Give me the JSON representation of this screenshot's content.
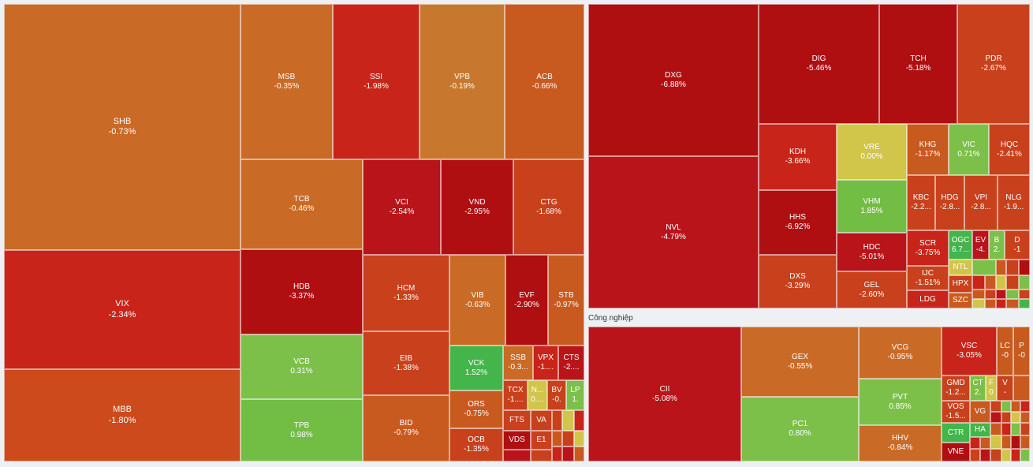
{
  "colors": {
    "strong_red": "#b00f12",
    "red": "#c8241a",
    "orange_red": "#cc4a1c",
    "orange": "#c96a26",
    "light_orange": "#c8782e",
    "yellow": "#d1c54a",
    "light_green": "#7cc04a",
    "green": "#43b54a"
  },
  "sectors": {
    "industrial_label": "Công nghiệp"
  },
  "tiles": {
    "SHB": {
      "sym": "SHB",
      "pct": "-0.73%"
    },
    "VIX": {
      "sym": "VIX",
      "pct": "-2.34%"
    },
    "MBB": {
      "sym": "MBB",
      "pct": "-1.80%"
    },
    "MSB": {
      "sym": "MSB",
      "pct": "-0.35%"
    },
    "SSI": {
      "sym": "SSI",
      "pct": "-1.98%"
    },
    "VPB": {
      "sym": "VPB",
      "pct": "-0.19%"
    },
    "ACB": {
      "sym": "ACB",
      "pct": "-0.66%"
    },
    "TCB": {
      "sym": "TCB",
      "pct": "-0.46%"
    },
    "VCI": {
      "sym": "VCI",
      "pct": "-2.54%"
    },
    "VND": {
      "sym": "VND",
      "pct": "-2.95%"
    },
    "CTG": {
      "sym": "CTG",
      "pct": "-1.68%"
    },
    "HDB": {
      "sym": "HDB",
      "pct": "-3.37%"
    },
    "VCB": {
      "sym": "VCB",
      "pct": "0.31%"
    },
    "TPB": {
      "sym": "TPB",
      "pct": "0.98%"
    },
    "HCM": {
      "sym": "HCM",
      "pct": "-1.33%"
    },
    "VIB": {
      "sym": "VIB",
      "pct": "-0.63%"
    },
    "EVF": {
      "sym": "EVF",
      "pct": "-2.90%"
    },
    "STB": {
      "sym": "STB",
      "pct": "-0.97%"
    },
    "EIB": {
      "sym": "EIB",
      "pct": "-1.38%"
    },
    "BID": {
      "sym": "BID",
      "pct": "-0.79%"
    },
    "VCK": {
      "sym": "VCK",
      "pct": "1.52%"
    },
    "SSB": {
      "sym": "SSB",
      "pct": "-0.3..."
    },
    "VPX": {
      "sym": "VPX",
      "pct": "-1...."
    },
    "CTS": {
      "sym": "CTS",
      "pct": "-2...."
    },
    "ORS": {
      "sym": "ORS",
      "pct": "-0.75%"
    },
    "TCX": {
      "sym": "TCX",
      "pct": "-1...."
    },
    "N_": {
      "sym": "N...",
      "pct": "0...."
    },
    "BV": {
      "sym": "BV",
      "pct": "-0."
    },
    "LP": {
      "sym": "LP",
      "pct": "1."
    },
    "FTS": {
      "sym": "FTS",
      "pct": ""
    },
    "VA": {
      "sym": "VA",
      "pct": ""
    },
    "OCB": {
      "sym": "OCB",
      "pct": "-1.35%"
    },
    "VDS": {
      "sym": "VDS",
      "pct": ""
    },
    "E1": {
      "sym": "E1",
      "pct": ""
    },
    "DXG": {
      "sym": "DXG",
      "pct": "-6.88%"
    },
    "NVL": {
      "sym": "NVL",
      "pct": "-4.79%"
    },
    "DIG": {
      "sym": "DIG",
      "pct": "-5.46%"
    },
    "TCH": {
      "sym": "TCH",
      "pct": "-5.18%"
    },
    "PDR": {
      "sym": "PDR",
      "pct": "-2.67%"
    },
    "KDH": {
      "sym": "KDH",
      "pct": "-3.66%"
    },
    "VRE": {
      "sym": "VRE",
      "pct": "0.00%"
    },
    "KHG": {
      "sym": "KHG",
      "pct": "-1.17%"
    },
    "VIC": {
      "sym": "VIC",
      "pct": "0.71%"
    },
    "HQC": {
      "sym": "HQC",
      "pct": "-2.41%"
    },
    "HHS": {
      "sym": "HHS",
      "pct": "-6.92%"
    },
    "VHM": {
      "sym": "VHM",
      "pct": "1.85%"
    },
    "KBC": {
      "sym": "KBC",
      "pct": "-2.2..."
    },
    "HDG": {
      "sym": "HDG",
      "pct": "-2.8..."
    },
    "VPI": {
      "sym": "VPI",
      "pct": "-2.8..."
    },
    "NLG": {
      "sym": "NLG",
      "pct": "-1.9..."
    },
    "HDC": {
      "sym": "HDC",
      "pct": "-5.01%"
    },
    "SCR": {
      "sym": "SCR",
      "pct": "-3.75%"
    },
    "OGC": {
      "sym": "OGC",
      "pct": "6.7..."
    },
    "EV": {
      "sym": "EV",
      "pct": "-4."
    },
    "B": {
      "sym": "B",
      "pct": "2."
    },
    "D": {
      "sym": "D",
      "pct": "-1"
    },
    "DXS": {
      "sym": "DXS",
      "pct": "-3.29%"
    },
    "GEL": {
      "sym": "GEL",
      "pct": "-2.60%"
    },
    "NTL": {
      "sym": "NTL",
      "pct": ""
    },
    "IJC": {
      "sym": "IJC",
      "pct": "-1.51%"
    },
    "HPX": {
      "sym": "HPX",
      "pct": ""
    },
    "LDG": {
      "sym": "LDG",
      "pct": ""
    },
    "SZC": {
      "sym": "SZC",
      "pct": ""
    },
    "CII": {
      "sym": "CII",
      "pct": "-5.08%"
    },
    "GEX": {
      "sym": "GEX",
      "pct": "-0.55%"
    },
    "PC1": {
      "sym": "PC1",
      "pct": "0.80%"
    },
    "VCG": {
      "sym": "VCG",
      "pct": "-0.95%"
    },
    "PVT": {
      "sym": "PVT",
      "pct": "0.85%"
    },
    "HHV": {
      "sym": "HHV",
      "pct": "-0.84%"
    },
    "VSC": {
      "sym": "VSC",
      "pct": "-3.05%"
    },
    "LC": {
      "sym": "LC",
      "pct": "-0"
    },
    "P": {
      "sym": "P",
      "pct": "-0"
    },
    "GMD": {
      "sym": "GMD",
      "pct": "-1.2..."
    },
    "CT": {
      "sym": "CT",
      "pct": "2."
    },
    "F": {
      "sym": "F",
      "pct": "0"
    },
    "V": {
      "sym": "V",
      "pct": "-"
    },
    "VOS": {
      "sym": "VOS",
      "pct": "-1.5..."
    },
    "VG": {
      "sym": "VG",
      "pct": ""
    },
    "CTR": {
      "sym": "CTR",
      "pct": ""
    },
    "HA": {
      "sym": "HA",
      "pct": ""
    },
    "VNE": {
      "sym": "VNE",
      "pct": ""
    }
  }
}
